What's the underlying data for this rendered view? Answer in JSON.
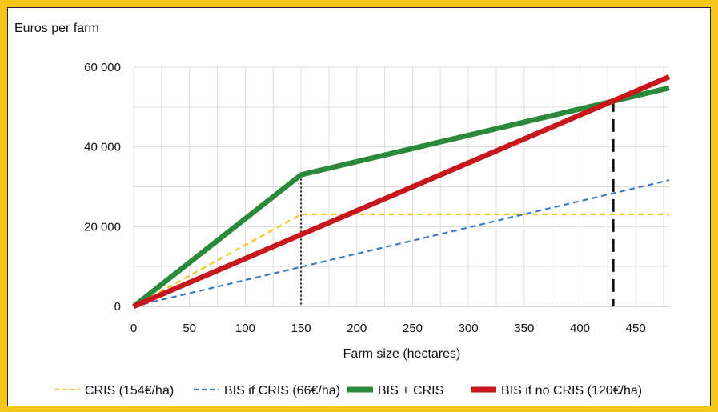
{
  "chart_data": {
    "type": "line",
    "ylabel": "Euros per farm",
    "xlabel": "Farm size (hectares)",
    "xlim": [
      0,
      480
    ],
    "ylim": [
      0,
      60000
    ],
    "x_ticks": [
      {
        "value": 0,
        "label": "0"
      },
      {
        "value": 50,
        "label": "50"
      },
      {
        "value": 100,
        "label": "100"
      },
      {
        "value": 150,
        "label": "150"
      },
      {
        "value": 200,
        "label": "200"
      },
      {
        "value": 250,
        "label": "250"
      },
      {
        "value": 300,
        "label": "300"
      },
      {
        "value": 350,
        "label": "350"
      },
      {
        "value": 400,
        "label": "400"
      },
      {
        "value": 450,
        "label": "450"
      }
    ],
    "y_ticks": [
      {
        "value": 0,
        "label": "0"
      },
      {
        "value": 20000,
        "label": "20 000"
      },
      {
        "value": 40000,
        "label": "40 000"
      },
      {
        "value": 60000,
        "label": "60 000"
      }
    ],
    "grid": true,
    "legend_position": "bottom",
    "series": [
      {
        "name": "CRIS (154€/ha)",
        "color": "#f5c518",
        "style": "dashed",
        "points": [
          [
            0,
            0
          ],
          [
            150,
            23100
          ],
          [
            480,
            23100
          ]
        ]
      },
      {
        "name": "BIS if CRIS (66€/ha)",
        "color": "#3b7bbf",
        "style": "dashed",
        "points": [
          [
            0,
            0
          ],
          [
            480,
            31680
          ]
        ]
      },
      {
        "name": "BIS + CRIS",
        "color": "#2a8a3a",
        "style": "solid",
        "points": [
          [
            0,
            0
          ],
          [
            150,
            33000
          ],
          [
            480,
            54800
          ]
        ]
      },
      {
        "name": "BIS if no CRIS (120€/ha)",
        "color": "#c8161d",
        "style": "solid",
        "points": [
          [
            0,
            0
          ],
          [
            480,
            57600
          ]
        ]
      }
    ],
    "reference_lines": [
      {
        "x": 150,
        "style": "dotted",
        "color": "#222222"
      },
      {
        "x": 430,
        "style": "long-dashed",
        "color": "#111111"
      }
    ]
  }
}
